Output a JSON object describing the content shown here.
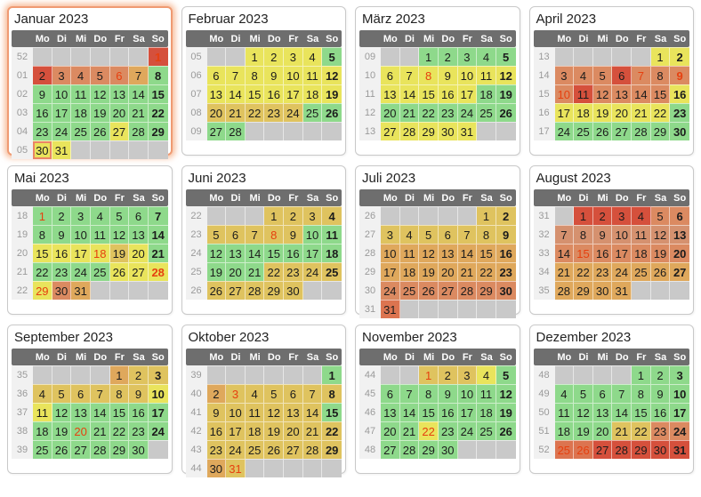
{
  "weekday_headers": [
    "Mo",
    "Di",
    "Mi",
    "Do",
    "Fr",
    "Sa",
    "So"
  ],
  "highlighted_month": "Januar 2023",
  "palette": {
    "green": "#8ed98b",
    "yellow": "#e9e45c",
    "tan": "#dfc35f",
    "orange": "#dfa85c",
    "salmon": "#db8a61",
    "salmon2": "#d5916f",
    "deep": "#dc7450",
    "red": "#d5503c",
    "empty": "#c9c9c9"
  },
  "text_colors": {
    "holiday": "#e6400f",
    "day": "#1c1c1c",
    "week_number": "#9a9a9a",
    "header": "#ffffff"
  },
  "day_format": "number|colorKey|flags (b=bold sunday, h=holiday red text, t=today outline)",
  "months": [
    {
      "title": "Januar 2023",
      "highlight": true,
      "weeks": [
        {
          "wk": "52",
          "days": [
            "",
            "",
            "",
            "",
            "",
            "",
            "1|red|hb"
          ]
        },
        {
          "wk": "01",
          "days": [
            "2|red|",
            "3|salmon|",
            "4|salmon|",
            "5|salmon|",
            "6|salmon|h",
            "7|orange|",
            "8|green|b"
          ]
        },
        {
          "wk": "02",
          "days": [
            "9|green|",
            "10|green|",
            "11|green|",
            "12|green|",
            "13|green|",
            "14|green|",
            "15|green|b"
          ]
        },
        {
          "wk": "03",
          "days": [
            "16|green|",
            "17|green|",
            "18|green|",
            "19|green|",
            "20|green|",
            "21|green|",
            "22|green|b"
          ]
        },
        {
          "wk": "04",
          "days": [
            "23|green|",
            "24|green|",
            "25|green|",
            "26|green|",
            "27|yellow|",
            "28|green|",
            "29|green|b"
          ]
        },
        {
          "wk": "05",
          "days": [
            "30|yellow|t",
            "31|yellow|",
            "",
            "",
            "",
            "",
            ""
          ]
        }
      ]
    },
    {
      "title": "Februar 2023",
      "highlight": false,
      "weeks": [
        {
          "wk": "05",
          "days": [
            "",
            "",
            "1|yellow|",
            "2|yellow|",
            "3|yellow|",
            "4|yellow|",
            "5|green|b"
          ]
        },
        {
          "wk": "06",
          "days": [
            "6|yellow|",
            "7|yellow|",
            "8|yellow|",
            "9|yellow|",
            "10|yellow|",
            "11|yellow|",
            "12|yellow|b"
          ]
        },
        {
          "wk": "07",
          "days": [
            "13|yellow|",
            "14|yellow|",
            "15|yellow|",
            "16|yellow|",
            "17|yellow|",
            "18|yellow|",
            "19|yellow|b"
          ]
        },
        {
          "wk": "08",
          "days": [
            "20|tan|",
            "21|tan|",
            "22|tan|",
            "23|tan|",
            "24|tan|",
            "25|green|",
            "26|green|b"
          ]
        },
        {
          "wk": "09",
          "days": [
            "27|green|",
            "28|green|",
            "",
            "",
            "",
            "",
            ""
          ]
        }
      ]
    },
    {
      "title": "März 2023",
      "highlight": false,
      "weeks": [
        {
          "wk": "09",
          "days": [
            "",
            "",
            "1|green|",
            "2|green|",
            "3|green|",
            "4|green|",
            "5|green|b"
          ]
        },
        {
          "wk": "10",
          "days": [
            "6|yellow|",
            "7|yellow|",
            "8|yellow|h",
            "9|yellow|",
            "10|yellow|",
            "11|yellow|",
            "12|yellow|b"
          ]
        },
        {
          "wk": "11",
          "days": [
            "13|yellow|",
            "14|yellow|",
            "15|yellow|",
            "16|yellow|",
            "17|yellow|",
            "18|green|",
            "19|green|b"
          ]
        },
        {
          "wk": "12",
          "days": [
            "20|green|",
            "21|green|",
            "22|green|",
            "23|green|",
            "24|green|",
            "25|green|",
            "26|green|b"
          ]
        },
        {
          "wk": "13",
          "days": [
            "27|yellow|",
            "28|yellow|",
            "29|yellow|",
            "30|yellow|",
            "31|yellow|",
            "",
            ""
          ]
        }
      ]
    },
    {
      "title": "April 2023",
      "highlight": false,
      "weeks": [
        {
          "wk": "13",
          "days": [
            "",
            "",
            "",
            "",
            "",
            "1|yellow|",
            "2|yellow|b"
          ]
        },
        {
          "wk": "14",
          "days": [
            "3|salmon|",
            "4|salmon|",
            "5|salmon|",
            "6|red|",
            "7|salmon|h",
            "8|salmon|",
            "9|salmon|hb"
          ]
        },
        {
          "wk": "15",
          "days": [
            "10|salmon|h",
            "11|red|",
            "12|salmon|",
            "13|salmon|",
            "14|salmon|",
            "15|salmon|",
            "16|yellow|b"
          ]
        },
        {
          "wk": "16",
          "days": [
            "17|yellow|",
            "18|yellow|",
            "19|yellow|",
            "20|yellow|",
            "21|yellow|",
            "22|yellow|",
            "23|green|b"
          ]
        },
        {
          "wk": "17",
          "days": [
            "24|green|",
            "25|green|",
            "26|green|",
            "27|green|",
            "28|green|",
            "29|green|",
            "30|green|b"
          ]
        }
      ]
    },
    {
      "title": "Mai 2023",
      "highlight": false,
      "weeks": [
        {
          "wk": "18",
          "days": [
            "1|green|h",
            "2|green|",
            "3|green|",
            "4|green|",
            "5|green|",
            "6|green|",
            "7|green|b"
          ]
        },
        {
          "wk": "19",
          "days": [
            "8|green|",
            "9|green|",
            "10|green|",
            "11|green|",
            "12|green|",
            "13|green|",
            "14|green|b"
          ]
        },
        {
          "wk": "20",
          "days": [
            "15|yellow|",
            "16|yellow|",
            "17|yellow|",
            "18|yellow|h",
            "19|tan|",
            "20|yellow|",
            "21|green|b"
          ]
        },
        {
          "wk": "21",
          "days": [
            "22|green|",
            "23|green|",
            "24|green|",
            "25|green|",
            "26|yellow|",
            "27|yellow|",
            "28|yellow|hb"
          ]
        },
        {
          "wk": "22",
          "days": [
            "29|yellow|h",
            "30|salmon|",
            "31|orange|",
            "",
            "",
            "",
            ""
          ]
        }
      ]
    },
    {
      "title": "Juni 2023",
      "highlight": false,
      "weeks": [
        {
          "wk": "22",
          "days": [
            "",
            "",
            "",
            "1|tan|",
            "2|tan|",
            "3|tan|",
            "4|tan|b"
          ]
        },
        {
          "wk": "23",
          "days": [
            "5|tan|",
            "6|tan|",
            "7|tan|",
            "8|tan|h",
            "9|tan|",
            "10|green|",
            "11|green|b"
          ]
        },
        {
          "wk": "24",
          "days": [
            "12|green|",
            "13|green|",
            "14|green|",
            "15|green|",
            "16|green|",
            "17|green|",
            "18|green|b"
          ]
        },
        {
          "wk": "25",
          "days": [
            "19|green|",
            "20|green|",
            "21|green|",
            "22|tan|",
            "23|tan|",
            "24|tan|",
            "25|tan|b"
          ]
        },
        {
          "wk": "26",
          "days": [
            "26|tan|",
            "27|tan|",
            "28|tan|",
            "29|tan|",
            "30|tan|",
            "",
            ""
          ]
        }
      ]
    },
    {
      "title": "Juli 2023",
      "highlight": false,
      "weeks": [
        {
          "wk": "26",
          "days": [
            "",
            "",
            "",
            "",
            "",
            "1|tan|",
            "2|tan|b"
          ]
        },
        {
          "wk": "27",
          "days": [
            "3|tan|",
            "4|tan|",
            "5|tan|",
            "6|tan|",
            "7|tan|",
            "8|tan|",
            "9|tan|b"
          ]
        },
        {
          "wk": "28",
          "days": [
            "10|orange|",
            "11|orange|",
            "12|orange|",
            "13|orange|",
            "14|orange|",
            "15|orange|",
            "16|orange|b"
          ]
        },
        {
          "wk": "29",
          "days": [
            "17|orange|",
            "18|orange|",
            "19|orange|",
            "20|orange|",
            "21|orange|",
            "22|orange|",
            "23|orange|b"
          ]
        },
        {
          "wk": "30",
          "days": [
            "24|salmon|",
            "25|salmon|",
            "26|salmon|",
            "27|salmon|",
            "28|salmon|",
            "29|salmon|",
            "30|salmon|b"
          ]
        },
        {
          "wk": "31",
          "days": [
            "31|deep|",
            "",
            "",
            "",
            "",
            "",
            ""
          ]
        }
      ]
    },
    {
      "title": "August 2023",
      "highlight": false,
      "weeks": [
        {
          "wk": "31",
          "days": [
            "",
            "1|red|",
            "2|red|",
            "3|red|",
            "4|red|",
            "5|salmon|",
            "6|salmon|b"
          ]
        },
        {
          "wk": "32",
          "days": [
            "7|salmon2|",
            "8|salmon2|",
            "9|salmon2|",
            "10|salmon2|",
            "11|salmon2|",
            "12|salmon2|",
            "13|salmon2|b"
          ]
        },
        {
          "wk": "33",
          "days": [
            "14|salmon|",
            "15|salmon|h",
            "16|salmon|",
            "17|salmon|",
            "18|salmon|",
            "19|salmon|",
            "20|salmon|b"
          ]
        },
        {
          "wk": "34",
          "days": [
            "21|orange|",
            "22|orange|",
            "23|orange|",
            "24|orange|",
            "25|orange|",
            "26|orange|",
            "27|orange|b"
          ]
        },
        {
          "wk": "35",
          "days": [
            "28|orange|",
            "29|orange|",
            "30|orange|",
            "31|orange|",
            "",
            "",
            ""
          ]
        }
      ]
    },
    {
      "title": "September 2023",
      "highlight": false,
      "weeks": [
        {
          "wk": "35",
          "days": [
            "",
            "",
            "",
            "",
            "1|orange|",
            "2|tan|",
            "3|tan|b"
          ]
        },
        {
          "wk": "36",
          "days": [
            "4|tan|",
            "5|tan|",
            "6|tan|",
            "7|tan|",
            "8|tan|",
            "9|tan|",
            "10|yellow|b"
          ]
        },
        {
          "wk": "37",
          "days": [
            "11|yellow|",
            "12|green|",
            "13|green|",
            "14|green|",
            "15|green|",
            "16|green|",
            "17|green|b"
          ]
        },
        {
          "wk": "38",
          "days": [
            "18|green|",
            "19|green|",
            "20|green|h",
            "21|green|",
            "22|green|",
            "23|green|",
            "24|green|b"
          ]
        },
        {
          "wk": "39",
          "days": [
            "25|green|",
            "26|green|",
            "27|green|",
            "28|green|",
            "29|green|",
            "30|green|",
            ""
          ]
        }
      ]
    },
    {
      "title": "Oktober 2023",
      "highlight": false,
      "weeks": [
        {
          "wk": "39",
          "days": [
            "",
            "",
            "",
            "",
            "",
            "",
            "1|green|b"
          ]
        },
        {
          "wk": "40",
          "days": [
            "2|orange|",
            "3|tan|h",
            "4|tan|",
            "5|tan|",
            "6|tan|",
            "7|tan|",
            "8|tan|b"
          ]
        },
        {
          "wk": "41",
          "days": [
            "9|tan|",
            "10|tan|",
            "11|tan|",
            "12|tan|",
            "13|tan|",
            "14|tan|",
            "15|green|b"
          ]
        },
        {
          "wk": "42",
          "days": [
            "16|tan|",
            "17|tan|",
            "18|tan|",
            "19|tan|",
            "20|tan|",
            "21|tan|",
            "22|tan|b"
          ]
        },
        {
          "wk": "43",
          "days": [
            "23|tan|",
            "24|tan|",
            "25|tan|",
            "26|tan|",
            "27|tan|",
            "28|tan|",
            "29|tan|b"
          ]
        },
        {
          "wk": "44",
          "days": [
            "30|orange|",
            "31|tan|h",
            "",
            "",
            "",
            "",
            ""
          ]
        }
      ]
    },
    {
      "title": "November 2023",
      "highlight": false,
      "weeks": [
        {
          "wk": "44",
          "days": [
            "",
            "",
            "1|tan|h",
            "2|tan|",
            "3|tan|",
            "4|yellow|",
            "5|green|b"
          ]
        },
        {
          "wk": "45",
          "days": [
            "6|green|",
            "7|green|",
            "8|green|",
            "9|green|",
            "10|green|",
            "11|green|",
            "12|green|b"
          ]
        },
        {
          "wk": "46",
          "days": [
            "13|green|",
            "14|green|",
            "15|green|",
            "16|green|",
            "17|green|",
            "18|green|",
            "19|green|b"
          ]
        },
        {
          "wk": "47",
          "days": [
            "20|green|",
            "21|green|",
            "22|yellow|h",
            "23|green|",
            "24|green|",
            "25|green|",
            "26|green|b"
          ]
        },
        {
          "wk": "48",
          "days": [
            "27|green|",
            "28|green|",
            "29|green|",
            "30|green|",
            "",
            "",
            ""
          ]
        }
      ]
    },
    {
      "title": "Dezember 2023",
      "highlight": false,
      "weeks": [
        {
          "wk": "48",
          "days": [
            "",
            "",
            "",
            "",
            "1|green|",
            "2|green|",
            "3|green|b"
          ]
        },
        {
          "wk": "49",
          "days": [
            "4|green|",
            "5|green|",
            "6|green|",
            "7|green|",
            "8|green|",
            "9|green|",
            "10|green|b"
          ]
        },
        {
          "wk": "50",
          "days": [
            "11|green|",
            "12|green|",
            "13|green|",
            "14|green|",
            "15|green|",
            "16|green|",
            "17|green|b"
          ]
        },
        {
          "wk": "51",
          "days": [
            "18|green|",
            "19|green|",
            "20|green|",
            "21|tan|",
            "22|tan|",
            "23|salmon|",
            "24|salmon|b"
          ]
        },
        {
          "wk": "52",
          "days": [
            "25|deep|h",
            "26|deep|h",
            "27|red|",
            "28|red|",
            "29|red|",
            "30|red|",
            "31|red|b"
          ]
        }
      ]
    }
  ]
}
